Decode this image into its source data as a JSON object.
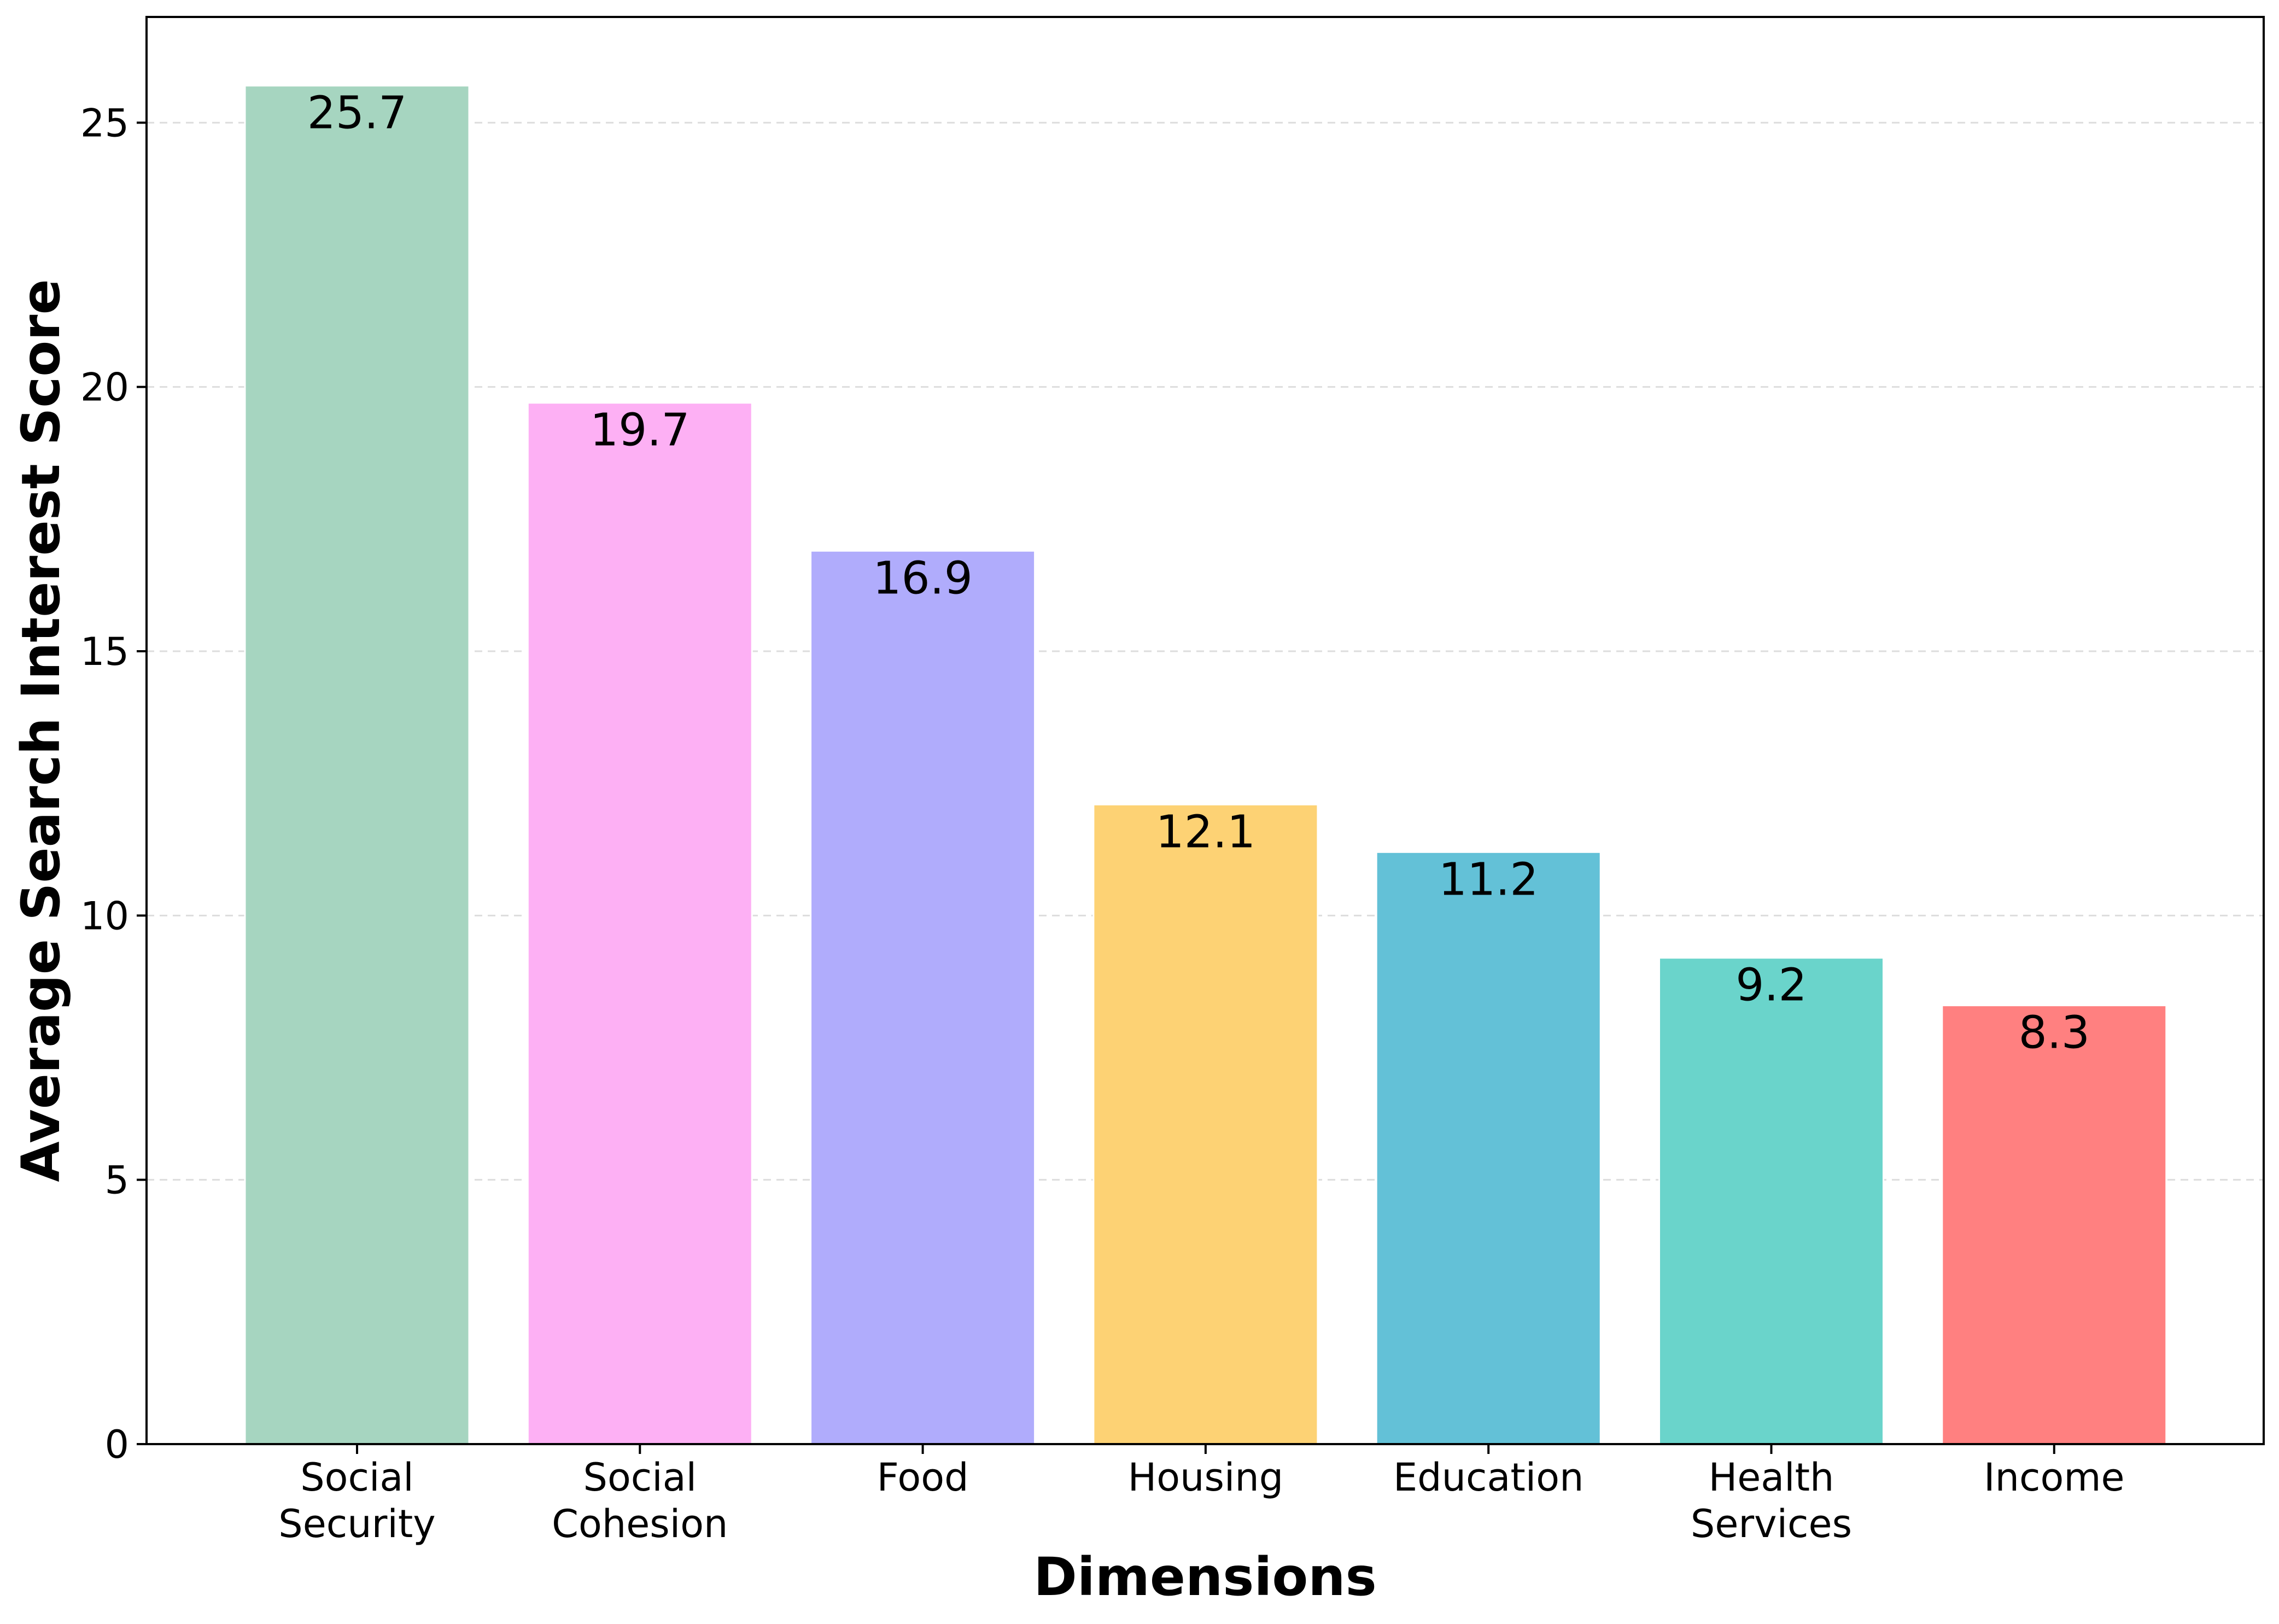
{
  "chart_data": {
    "type": "bar",
    "title": "",
    "xlabel": "Dimensions",
    "ylabel": "Average Search Interest Score",
    "categories": [
      [
        "Social",
        "Security"
      ],
      [
        "Social",
        "Cohesion"
      ],
      [
        "Food"
      ],
      [
        "Housing"
      ],
      [
        "Education"
      ],
      [
        "Health",
        "Services"
      ],
      [
        "Income"
      ]
    ],
    "values": [
      25.7,
      19.7,
      16.9,
      12.1,
      11.2,
      9.2,
      8.3
    ],
    "value_labels": [
      "25.7",
      "19.7",
      "16.9",
      "12.1",
      "11.2",
      "9.2",
      "8.3"
    ],
    "colors": [
      "#a6d5c0",
      "#fdb0f4",
      "#b0acfc",
      "#fdd274",
      "#63c1d7",
      "#6ad4cb",
      "#ff8080"
    ],
    "ylim": [
      0,
      27
    ],
    "yticks": [
      0,
      5,
      10,
      15,
      20,
      25
    ],
    "ytick_labels": [
      "0",
      "5",
      "10",
      "15",
      "20",
      "25"
    ],
    "grid": true,
    "legend": "none"
  }
}
